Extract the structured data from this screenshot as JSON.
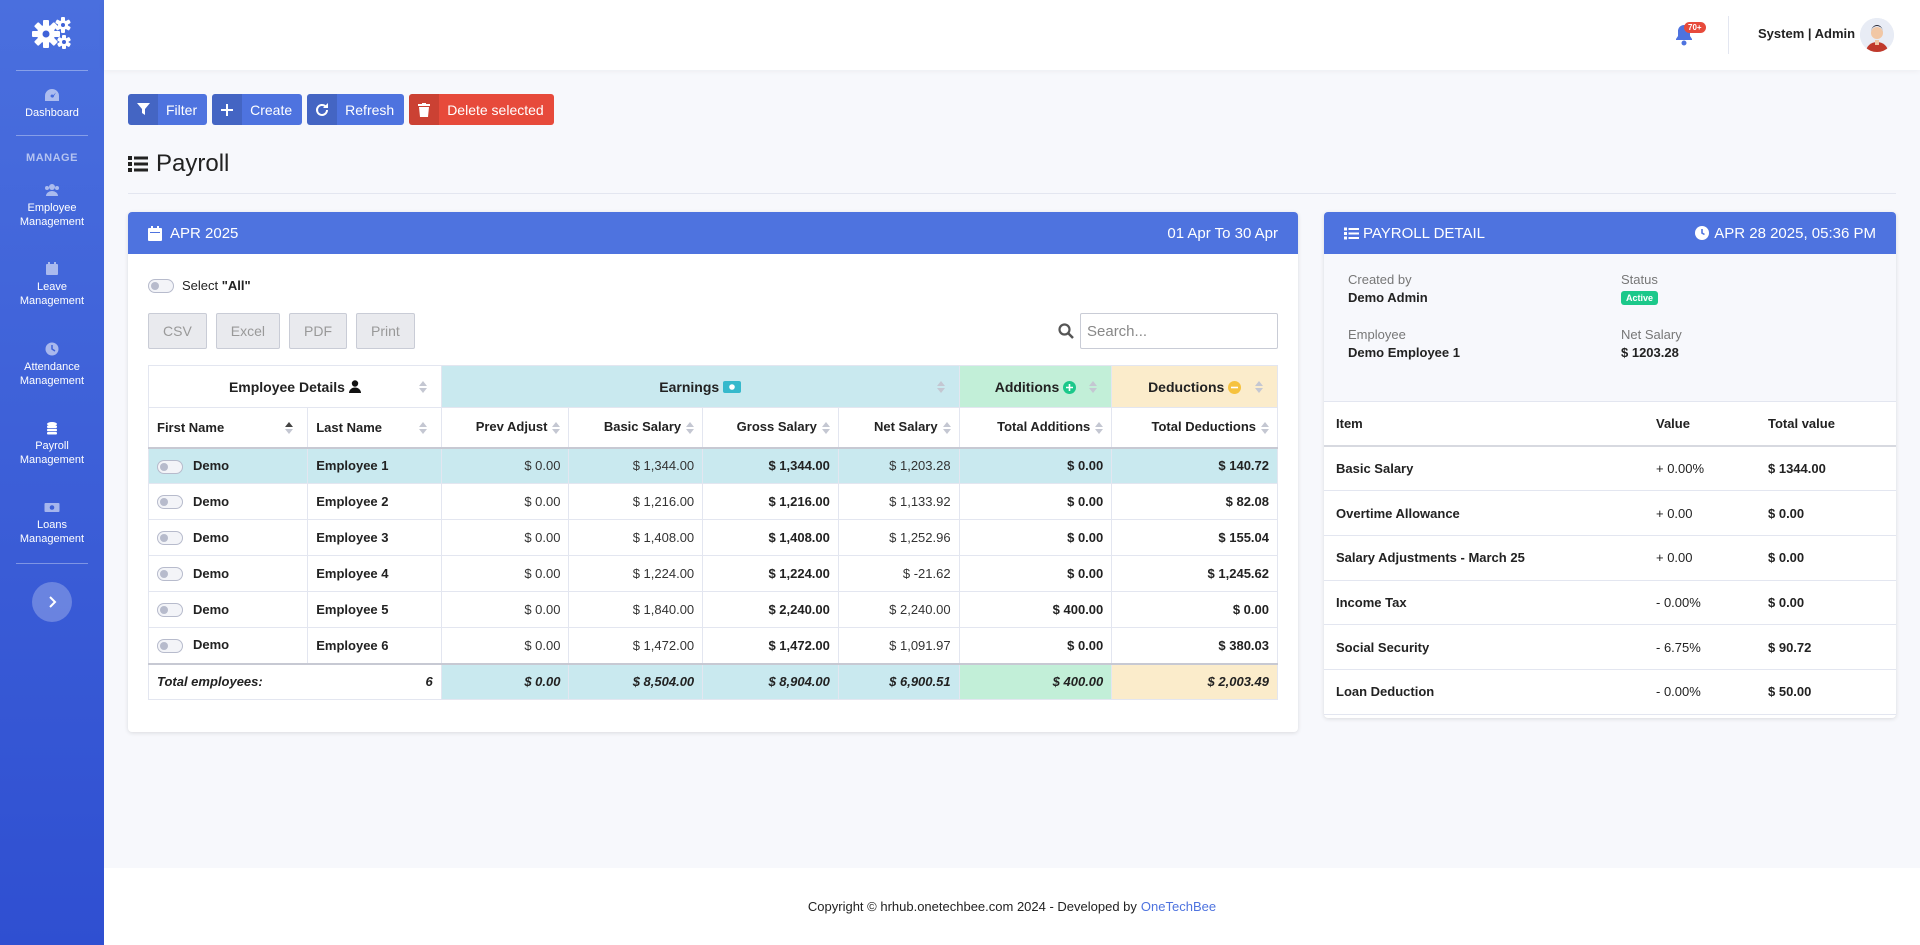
{
  "sidebar": {
    "manage_heading": "MANAGE",
    "items": [
      {
        "label_1": "Dashboard",
        "label_2": "",
        "icon": "gauge-icon"
      },
      {
        "label_1": "Employee",
        "label_2": "Management",
        "icon": "users-icon"
      },
      {
        "label_1": "Leave",
        "label_2": "Management",
        "icon": "calendar-icon"
      },
      {
        "label_1": "Attendance",
        "label_2": "Management",
        "icon": "clock-icon"
      },
      {
        "label_1": "Payroll",
        "label_2": "Management",
        "icon": "coins-icon"
      },
      {
        "label_1": "Loans",
        "label_2": "Management",
        "icon": "money-icon"
      }
    ]
  },
  "topbar": {
    "notification_count": "70+",
    "user": "System | Admin"
  },
  "toolbar": {
    "filter": "Filter",
    "create": "Create",
    "refresh": "Refresh",
    "delete_selected": "Delete selected"
  },
  "page": {
    "title": "Payroll"
  },
  "payroll_card": {
    "period": "APR 2025",
    "range": "01 Apr To 30 Apr",
    "select_all_label": "Select ",
    "select_all_value": "\"All\"",
    "export_buttons": [
      "CSV",
      "Excel",
      "PDF",
      "Print"
    ],
    "search_placeholder": "Search...",
    "group_headers": {
      "employee": "Employee Details",
      "earnings": "Earnings",
      "additions": "Additions",
      "deductions": "Deductions"
    },
    "columns": [
      "First Name",
      "Last Name",
      "Prev Adjust",
      "Basic Salary",
      "Gross Salary",
      "Net Salary",
      "Total Additions",
      "Total Deductions"
    ],
    "rows": [
      {
        "first": "Demo",
        "last": "Employee 1",
        "prev": "$ 0.00",
        "basic": "$ 1,344.00",
        "gross": "$ 1,344.00",
        "net": "$ 1,203.28",
        "add": "$ 0.00",
        "ded": "$ 140.72"
      },
      {
        "first": "Demo",
        "last": "Employee 2",
        "prev": "$ 0.00",
        "basic": "$ 1,216.00",
        "gross": "$ 1,216.00",
        "net": "$ 1,133.92",
        "add": "$ 0.00",
        "ded": "$ 82.08"
      },
      {
        "first": "Demo",
        "last": "Employee 3",
        "prev": "$ 0.00",
        "basic": "$ 1,408.00",
        "gross": "$ 1,408.00",
        "net": "$ 1,252.96",
        "add": "$ 0.00",
        "ded": "$ 155.04"
      },
      {
        "first": "Demo",
        "last": "Employee 4",
        "prev": "$ 0.00",
        "basic": "$ 1,224.00",
        "gross": "$ 1,224.00",
        "net": "$ -21.62",
        "add": "$ 0.00",
        "ded": "$ 1,245.62"
      },
      {
        "first": "Demo",
        "last": "Employee 5",
        "prev": "$ 0.00",
        "basic": "$ 1,840.00",
        "gross": "$ 2,240.00",
        "net": "$ 2,240.00",
        "add": "$ 400.00",
        "ded": "$ 0.00"
      },
      {
        "first": "Demo",
        "last": "Employee 6",
        "prev": "$ 0.00",
        "basic": "$ 1,472.00",
        "gross": "$ 1,472.00",
        "net": "$ 1,091.97",
        "add": "$ 0.00",
        "ded": "$ 380.03"
      }
    ],
    "totals": {
      "label": "Total employees:",
      "count": "6",
      "prev": "$ 0.00",
      "basic": "$ 8,504.00",
      "gross": "$ 8,904.00",
      "net": "$ 6,900.51",
      "add": "$ 400.00",
      "ded": "$ 2,003.49"
    }
  },
  "detail_card": {
    "title": "PAYROLL DETAIL",
    "timestamp": "APR 28 2025, 05:36 PM",
    "created_by_label": "Created by",
    "created_by": "Demo Admin",
    "status_label": "Status",
    "status": "Active",
    "employee_label": "Employee",
    "employee": "Demo Employee 1",
    "net_salary_label": "Net Salary",
    "net_salary": "$ 1203.28",
    "columns": [
      "Item",
      "Value",
      "Total value"
    ],
    "items": [
      {
        "item": "Basic Salary",
        "value": "+ 0.00%",
        "total": "$ 1344.00"
      },
      {
        "item": "Overtime Allowance",
        "value": "+ 0.00",
        "total": "$ 0.00"
      },
      {
        "item": "Salary Adjustments - March 25",
        "value": "+ 0.00",
        "total": "$ 0.00"
      },
      {
        "item": "Income Tax",
        "value": "- 0.00%",
        "total": "$ 0.00"
      },
      {
        "item": "Social Security",
        "value": "- 6.75%",
        "total": "$ 90.72"
      },
      {
        "item": "Loan Deduction",
        "value": "- 0.00%",
        "total": "$ 50.00"
      }
    ]
  },
  "footer": {
    "text": "Copyright © hrhub.onetechbee.com 2024 - Developed by",
    "link": "OneTechBee"
  },
  "colors": {
    "primary": "#4e73df",
    "danger": "#e74a3b",
    "success": "#1cc88a",
    "earnings_bg": "#c9e9ef",
    "additions_bg": "#c2efd8",
    "deductions_bg": "#fbeccb"
  }
}
